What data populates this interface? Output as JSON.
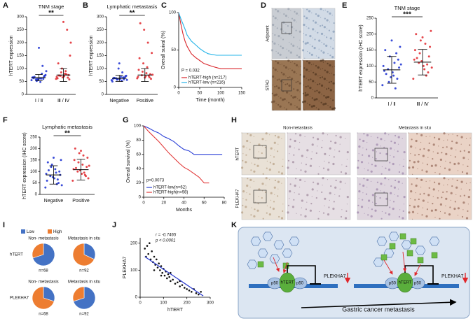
{
  "panel_labels": [
    "A",
    "B",
    "C",
    "D",
    "E",
    "F",
    "G",
    "H",
    "I",
    "J",
    "K"
  ],
  "chart_data": [
    {
      "type": "dot",
      "title": "TNM stage",
      "ylabel": "hTERT  expression",
      "categories": [
        "Ⅰ / Ⅱ",
        "Ⅲ / Ⅳ"
      ],
      "colors": [
        "#1a2fd1",
        "#e0262b"
      ],
      "points": [
        [
          55,
          60,
          62,
          58,
          65,
          70,
          48,
          52,
          66,
          72,
          61,
          59,
          63,
          75,
          80,
          57,
          68,
          90,
          110,
          180
        ],
        [
          60,
          65,
          70,
          72,
          68,
          75,
          80,
          85,
          62,
          58,
          90,
          100,
          120,
          150,
          78,
          66,
          73,
          200,
          250,
          280
        ]
      ],
      "means": [
        65,
        75
      ],
      "sds": [
        12,
        25
      ],
      "ylim": [
        0,
        300
      ],
      "yticks": [
        0,
        50,
        100,
        150,
        200,
        250,
        300
      ],
      "significance": "**"
    },
    {
      "type": "dot",
      "title": "Lymphatic metastasis",
      "ylabel": "hTERT  expression",
      "categories": [
        "Negative",
        "Positive"
      ],
      "colors": [
        "#1a2fd1",
        "#e0262b"
      ],
      "points": [
        [
          55,
          58,
          60,
          62,
          50,
          65,
          68,
          57,
          61,
          70,
          53,
          59,
          64,
          72,
          85,
          100,
          63,
          56,
          66,
          120
        ],
        [
          62,
          66,
          70,
          74,
          68,
          78,
          82,
          88,
          95,
          60,
          105,
          120,
          140,
          160,
          200,
          250,
          275,
          76,
          72,
          65
        ]
      ],
      "means": [
        62,
        75
      ],
      "sds": [
        12,
        25
      ],
      "ylim": [
        0,
        300
      ],
      "yticks": [
        0,
        50,
        100,
        150,
        200,
        250,
        300
      ],
      "significance": "**"
    },
    {
      "type": "km",
      "ylabel": "Overall suival (%)",
      "xlabel": "Time (month)",
      "annotation": "P = 0.032",
      "series": [
        {
          "name": "hTERT-high (n=217)",
          "color": "#d9262b",
          "x": [
            0,
            5,
            10,
            15,
            20,
            25,
            30,
            40,
            50,
            60,
            70,
            80,
            100,
            120,
            150
          ],
          "values": [
            100,
            85,
            72,
            62,
            55,
            50,
            45,
            40,
            36,
            32,
            30,
            28,
            25,
            25,
            25
          ]
        },
        {
          "name": "hTERT-low (n=216)",
          "color": "#25b4e8",
          "x": [
            0,
            5,
            10,
            15,
            20,
            30,
            40,
            50,
            60,
            70,
            80,
            90,
            150
          ],
          "values": [
            100,
            92,
            85,
            78,
            70,
            62,
            57,
            52,
            48,
            45,
            44,
            43,
            43
          ]
        }
      ],
      "xlim": [
        0,
        150
      ],
      "xticks": [
        0,
        50,
        100,
        150
      ],
      "ylim": [
        0,
        100
      ],
      "yticks": [
        0,
        50,
        100
      ],
      "legend": "lower left"
    },
    {
      "type": "dot",
      "title": "TNM stage",
      "ylabel": "hTERT expression (IHC score)",
      "categories": [
        "Ⅰ / Ⅱ",
        "Ⅲ / Ⅳ"
      ],
      "colors": [
        "#1a2fd1",
        "#e0262b"
      ],
      "points": [
        [
          40,
          60,
          80,
          90,
          100,
          120,
          70,
          50,
          85,
          95,
          110,
          130,
          150,
          160,
          30,
          65,
          75,
          105,
          140,
          180
        ],
        [
          60,
          80,
          100,
          110,
          120,
          130,
          90,
          140,
          150,
          160,
          170,
          180,
          200,
          210,
          70,
          115,
          125,
          95,
          105,
          190
        ]
      ],
      "means": [
        88,
        112
      ],
      "sds": [
        42,
        40
      ],
      "ylim": [
        0,
        250
      ],
      "yticks": [
        0,
        50,
        100,
        150,
        200,
        250
      ],
      "significance": "***"
    },
    {
      "type": "dot",
      "title": "Lymphatic metastasis",
      "ylabel": "hTERT expression (IHC score)",
      "categories": [
        "Negative",
        "Positive"
      ],
      "colors": [
        "#1a2fd1",
        "#e0262b"
      ],
      "points": [
        [
          30,
          50,
          70,
          80,
          90,
          100,
          110,
          120,
          60,
          85,
          95,
          130,
          140,
          150,
          45,
          75,
          105,
          40,
          65,
          160
        ],
        [
          60,
          80,
          90,
          100,
          110,
          120,
          130,
          140,
          150,
          160,
          170,
          180,
          200,
          70,
          95,
          105,
          115,
          125,
          85,
          190
        ]
      ],
      "means": [
        85,
        108
      ],
      "sds": [
        40,
        45
      ],
      "ylim": [
        0,
        250
      ],
      "yticks": [
        0,
        50,
        100,
        150,
        200,
        250
      ],
      "significance": "**"
    },
    {
      "type": "km",
      "ylabel": "Overall survival (%)",
      "xlabel": "Months",
      "annotation": "p=0.0073",
      "series": [
        {
          "name": "hTERT-low(n=62)",
          "color": "#2a3fd6",
          "x": [
            0,
            5,
            10,
            15,
            20,
            25,
            30,
            35,
            40,
            45,
            50,
            60,
            70,
            78
          ],
          "values": [
            100,
            97,
            93,
            90,
            85,
            82,
            78,
            72,
            67,
            65,
            60,
            60,
            60,
            60
          ]
        },
        {
          "name": "hTERT-high(n=98)",
          "color": "#e23b3b",
          "x": [
            0,
            5,
            10,
            15,
            20,
            25,
            30,
            35,
            40,
            45,
            50,
            55,
            60,
            65
          ],
          "values": [
            100,
            92,
            85,
            78,
            70,
            62,
            55,
            48,
            42,
            38,
            33,
            28,
            20,
            20
          ]
        }
      ],
      "xlim": [
        0,
        80
      ],
      "xticks": [
        0,
        20,
        40,
        60,
        80
      ],
      "ylim": [
        0,
        100
      ],
      "yticks": [
        0,
        20,
        40,
        60,
        80,
        100
      ],
      "legend": "lower left"
    },
    {
      "type": "pie",
      "legend": [
        "Low",
        "High"
      ],
      "colors": [
        "#4472c4",
        "#ed7d31"
      ],
      "rows": [
        "hTERT",
        "PLEKHA7"
      ],
      "columns": [
        "Non- metastasis",
        "Metastasis in situ"
      ],
      "pies": [
        {
          "values": [
            70,
            30
          ],
          "n": "n=68"
        },
        {
          "values": [
            32,
            68
          ],
          "n": "n=92"
        },
        {
          "values": [
            30,
            70
          ],
          "n": "n=68"
        },
        {
          "values": [
            70,
            30
          ],
          "n": "n=92"
        }
      ]
    },
    {
      "type": "scatter",
      "xlabel": "hTERT",
      "ylabel": "PLEKHA7",
      "annotations": [
        "r = -0.7465",
        "p <  0.0001"
      ],
      "color": "#111111",
      "line_color": "#2233cc",
      "x": [
        20,
        30,
        35,
        40,
        45,
        50,
        55,
        60,
        65,
        70,
        75,
        80,
        85,
        90,
        95,
        100,
        105,
        110,
        115,
        120,
        125,
        130,
        140,
        150,
        160,
        170,
        180,
        190,
        200,
        210,
        220,
        230,
        240,
        250,
        260,
        25,
        60,
        90,
        130,
        170
      ],
      "y": [
        180,
        190,
        160,
        200,
        140,
        170,
        130,
        150,
        120,
        140,
        110,
        125,
        100,
        115,
        90,
        105,
        80,
        95,
        70,
        85,
        75,
        60,
        65,
        50,
        55,
        40,
        45,
        35,
        30,
        25,
        20,
        30,
        15,
        10,
        20,
        150,
        100,
        80,
        90,
        60
      ],
      "trend": {
        "x": [
          20,
          270
        ],
        "y": [
          150,
          5
        ]
      },
      "xlim": [
        0,
        300
      ],
      "xticks": [
        0,
        100,
        200,
        300
      ],
      "ylim": [
        0,
        220
      ],
      "yticks": [
        0,
        100,
        200
      ]
    }
  ],
  "images": {
    "D": {
      "rows": [
        "Adjacent",
        "STAD"
      ]
    },
    "H": {
      "columns": [
        "Non-metastasis",
        "Metastasis in situ"
      ],
      "rows": [
        "hTERT",
        "PLEKHA7"
      ]
    }
  },
  "diagram": {
    "left": [
      "p50",
      "hTERT",
      "p50",
      "PLEKHA7"
    ],
    "right": [
      "p50",
      "hTERT",
      "p50",
      "PLEKHA7"
    ],
    "caption": "Gastric cancer metastasis"
  }
}
